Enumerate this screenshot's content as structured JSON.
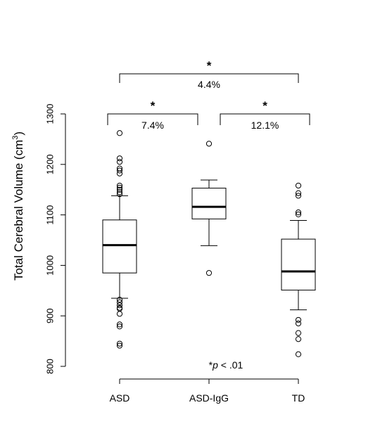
{
  "chart_data": {
    "type": "box",
    "ylabel": "Total Cerebral Volume (cm",
    "ylabel_superscript": "3",
    "ylabel_close": ")",
    "ylim": [
      800,
      1300
    ],
    "yticks": [
      800,
      900,
      1000,
      1100,
      1200,
      1300
    ],
    "categories": [
      "ASD",
      "ASD-IgG",
      "TD"
    ],
    "boxes": [
      {
        "name": "ASD",
        "whisker_low": 935,
        "q1": 985,
        "median": 1040,
        "q3": 1090,
        "whisker_high": 1138,
        "outliers": [
          1262,
          1212,
          1205,
          1192,
          1188,
          1182,
          1158,
          1154,
          1150,
          1145,
          1141,
          932,
          927,
          921,
          916,
          914,
          904,
          883,
          879,
          845,
          841
        ]
      },
      {
        "name": "ASD-IgG",
        "whisker_low": 1039,
        "q1": 1092,
        "median": 1116,
        "q3": 1153,
        "whisker_high": 1169,
        "outliers": [
          1241,
          985
        ]
      },
      {
        "name": "TD",
        "whisker_low": 912,
        "q1": 951,
        "median": 988,
        "q3": 1052,
        "whisker_high": 1089,
        "outliers": [
          1158,
          1143,
          1138,
          1105,
          1101,
          892,
          885,
          866,
          854,
          824
        ]
      }
    ],
    "comparisons": [
      {
        "from": "ASD",
        "to": "TD",
        "star": "*",
        "label": "4.4%"
      },
      {
        "from": "ASD",
        "to": "ASD-IgG",
        "star": "*",
        "label": "7.4%"
      },
      {
        "from": "ASD-IgG",
        "to": "TD",
        "star": "*",
        "label": "12.1%"
      }
    ],
    "footnote": {
      "star": "*",
      "p": "p",
      "rest": " < .01"
    },
    "grid": false,
    "legend": "none"
  }
}
